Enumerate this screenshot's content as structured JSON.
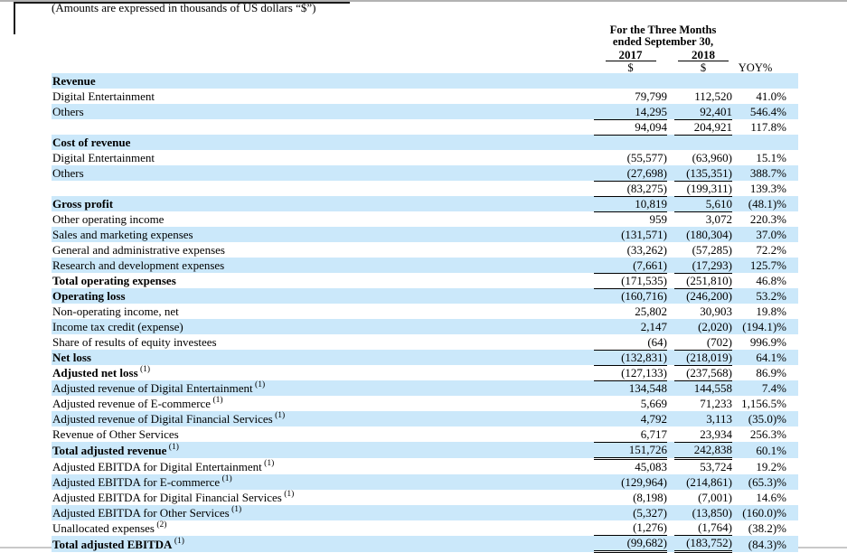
{
  "note": "(Amounts are expressed in thousands of US dollars “$”)",
  "colors": {
    "row_shade": "#cbe8fa",
    "text": "#000000"
  },
  "table": {
    "header": {
      "period_line1": "For the Three Months",
      "period_line2": "ended September 30,",
      "year_2017": "2017",
      "year_2018": "2018",
      "currency_2017": "$",
      "currency_2018": "$",
      "yoy_label": "YOY%"
    },
    "rows": [
      {
        "label": "Revenue",
        "sup": "",
        "v2017": "",
        "v2018": "",
        "yoy": "",
        "bold": true,
        "shade": true,
        "underline": "none"
      },
      {
        "label": "Digital Entertainment",
        "sup": "",
        "v2017": "79,799",
        "v2018": "112,520",
        "yoy": "41.0%",
        "bold": false,
        "shade": false,
        "underline": "none"
      },
      {
        "label": "Others",
        "sup": "",
        "v2017": "14,295",
        "v2018": "92,401",
        "yoy": "546.4%",
        "bold": false,
        "shade": true,
        "underline": "single"
      },
      {
        "label": "",
        "sup": "",
        "v2017": "94,094",
        "v2018": "204,921",
        "yoy": "117.8%",
        "bold": false,
        "shade": false,
        "underline": "single"
      },
      {
        "label": "Cost of revenue",
        "sup": "",
        "v2017": "",
        "v2018": "",
        "yoy": "",
        "bold": true,
        "shade": true,
        "underline": "none"
      },
      {
        "label": "Digital Entertainment",
        "sup": "",
        "v2017": "(55,577)",
        "v2018": "(63,960)",
        "yoy": "15.1%",
        "bold": false,
        "shade": false,
        "underline": "none"
      },
      {
        "label": "Others",
        "sup": "",
        "v2017": "(27,698)",
        "v2018": "(135,351)",
        "yoy": "388.7%",
        "bold": false,
        "shade": true,
        "underline": "single"
      },
      {
        "label": "",
        "sup": "",
        "v2017": "(83,275)",
        "v2018": "(199,311)",
        "yoy": "139.3%",
        "bold": false,
        "shade": false,
        "underline": "single"
      },
      {
        "label": "Gross profit",
        "sup": "",
        "v2017": "10,819",
        "v2018": "5,610",
        "yoy": "(48.1)%",
        "bold": true,
        "shade": true,
        "underline": "single"
      },
      {
        "label": "Other operating income",
        "sup": "",
        "v2017": "959",
        "v2018": "3,072",
        "yoy": "220.3%",
        "bold": false,
        "shade": false,
        "underline": "none"
      },
      {
        "label": "Sales and marketing expenses",
        "sup": "",
        "v2017": "(131,571)",
        "v2018": "(180,304)",
        "yoy": "37.0%",
        "bold": false,
        "shade": true,
        "underline": "none"
      },
      {
        "label": "General and administrative expenses",
        "sup": "",
        "v2017": "(33,262)",
        "v2018": "(57,285)",
        "yoy": "72.2%",
        "bold": false,
        "shade": false,
        "underline": "none"
      },
      {
        "label": "Research and development expenses",
        "sup": "",
        "v2017": "(7,661)",
        "v2018": "(17,293)",
        "yoy": "125.7%",
        "bold": false,
        "shade": true,
        "underline": "single"
      },
      {
        "label": "Total operating expenses",
        "sup": "",
        "v2017": "(171,535)",
        "v2018": "(251,810)",
        "yoy": "46.8%",
        "bold": true,
        "shade": false,
        "underline": "single"
      },
      {
        "label": "Operating loss",
        "sup": "",
        "v2017": "(160,716)",
        "v2018": "(246,200)",
        "yoy": "53.2%",
        "bold": true,
        "shade": true,
        "underline": "none"
      },
      {
        "label": "Non-operating income, net",
        "sup": "",
        "v2017": "25,802",
        "v2018": "30,903",
        "yoy": "19.8%",
        "bold": false,
        "shade": false,
        "underline": "none"
      },
      {
        "label": "Income tax credit (expense)",
        "sup": "",
        "v2017": "2,147",
        "v2018": "(2,020)",
        "yoy": "(194.1)%",
        "bold": false,
        "shade": true,
        "underline": "none"
      },
      {
        "label": "Share of results of equity investees",
        "sup": "",
        "v2017": "(64)",
        "v2018": "(702)",
        "yoy": "996.9%",
        "bold": false,
        "shade": false,
        "underline": "single"
      },
      {
        "label": "Net loss",
        "sup": "",
        "v2017": "(132,831)",
        "v2018": "(218,019)",
        "yoy": "64.1%",
        "bold": true,
        "shade": true,
        "underline": "single"
      },
      {
        "label": "Adjusted net loss",
        "sup": "(1)",
        "v2017": "(127,133)",
        "v2018": "(237,568)",
        "yoy": "86.9%",
        "bold": true,
        "shade": false,
        "underline": "single"
      },
      {
        "label": "Adjusted revenue of Digital Entertainment",
        "sup": "(1)",
        "v2017": "134,548",
        "v2018": "144,558",
        "yoy": "7.4%",
        "bold": false,
        "shade": true,
        "underline": "none"
      },
      {
        "label": "Adjusted revenue of E-commerce",
        "sup": "(1)",
        "v2017": "5,669",
        "v2018": "71,233",
        "yoy": "1,156.5%",
        "bold": false,
        "shade": false,
        "underline": "none"
      },
      {
        "label": "Adjusted revenue of Digital Financial Services",
        "sup": "(1)",
        "v2017": "4,792",
        "v2018": "3,113",
        "yoy": "(35.0)%",
        "bold": false,
        "shade": true,
        "underline": "none"
      },
      {
        "label": "Revenue of Other Services",
        "sup": "",
        "v2017": "6,717",
        "v2018": "23,934",
        "yoy": "256.3%",
        "bold": false,
        "shade": false,
        "underline": "single"
      },
      {
        "label": "Total adjusted revenue",
        "sup": "(1)",
        "v2017": "151,726",
        "v2018": "242,838",
        "yoy": "60.1%",
        "bold": true,
        "shade": true,
        "underline": "double"
      },
      {
        "label": "Adjusted EBITDA for Digital Entertainment",
        "sup": "(1)",
        "v2017": "45,083",
        "v2018": "53,724",
        "yoy": "19.2%",
        "bold": false,
        "shade": false,
        "underline": "none"
      },
      {
        "label": "Adjusted EBITDA for E-commerce",
        "sup": "(1)",
        "v2017": "(129,964)",
        "v2018": "(214,861)",
        "yoy": "(65.3)%",
        "bold": false,
        "shade": true,
        "underline": "none"
      },
      {
        "label": "Adjusted EBITDA for Digital Financial Services",
        "sup": "(1)",
        "v2017": "(8,198)",
        "v2018": "(7,001)",
        "yoy": "14.6%",
        "bold": false,
        "shade": false,
        "underline": "none"
      },
      {
        "label": "Adjusted EBITDA for Other Services",
        "sup": "(1)",
        "v2017": "(5,327)",
        "v2018": "(13,850)",
        "yoy": "(160.0)%",
        "bold": false,
        "shade": true,
        "underline": "none"
      },
      {
        "label": "Unallocated expenses",
        "sup": "(2)",
        "v2017": "(1,276)",
        "v2018": "(1,764)",
        "yoy": "(38.2)%",
        "bold": false,
        "shade": false,
        "underline": "single"
      },
      {
        "label": "Total adjusted EBITDA",
        "sup": "(1)",
        "v2017": "(99,682)",
        "v2018": "(183,752)",
        "yoy": "(84.3)%",
        "bold": true,
        "shade": true,
        "underline": "double"
      }
    ]
  }
}
